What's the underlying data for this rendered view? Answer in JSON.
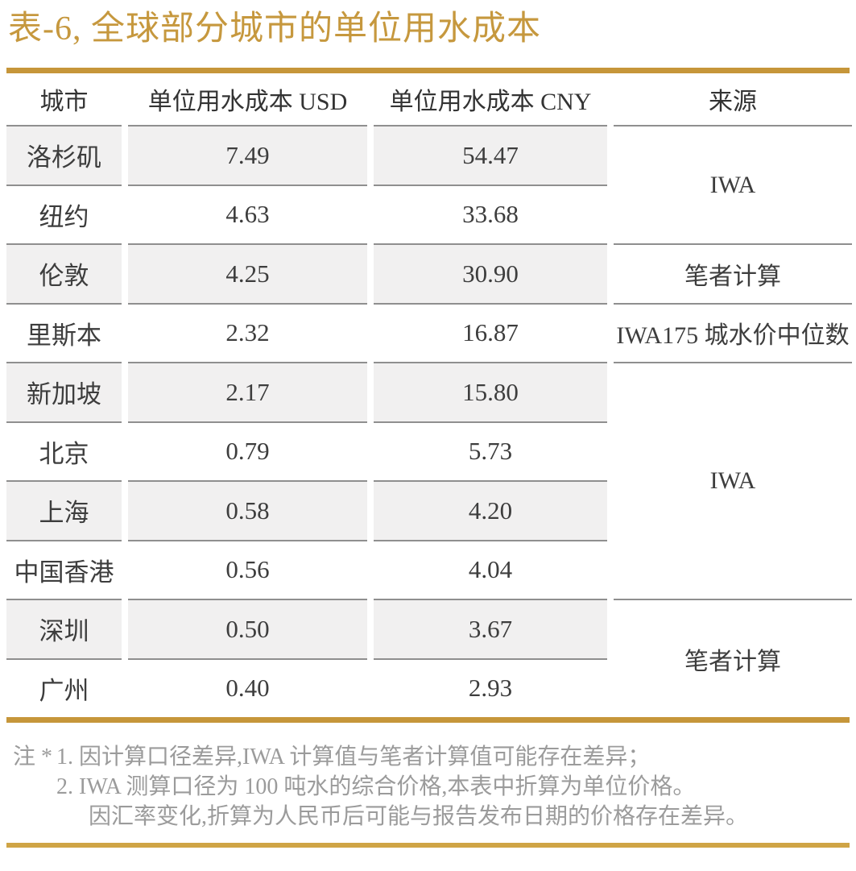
{
  "title": "表-6, 全球部分城市的单位用水成本",
  "table": {
    "columns": [
      "城市",
      "单位用水成本 USD",
      "单位用水成本 CNY",
      "来源"
    ],
    "rows": [
      {
        "city": "洛杉矶",
        "usd": "7.49",
        "cny": "54.47"
      },
      {
        "city": "纽约",
        "usd": "4.63",
        "cny": "33.68"
      },
      {
        "city": "伦敦",
        "usd": "4.25",
        "cny": "30.90"
      },
      {
        "city": "里斯本",
        "usd": "2.32",
        "cny": "16.87"
      },
      {
        "city": "新加坡",
        "usd": "2.17",
        "cny": "15.80"
      },
      {
        "city": "北京",
        "usd": "0.79",
        "cny": "5.73"
      },
      {
        "city": "上海",
        "usd": "0.58",
        "cny": "4.20"
      },
      {
        "city": "中国香港",
        "usd": "0.56",
        "cny": "4.04"
      },
      {
        "city": "深圳",
        "usd": "0.50",
        "cny": "3.67"
      },
      {
        "city": "广州",
        "usd": "0.40",
        "cny": "2.93"
      }
    ],
    "sources": [
      {
        "label": "IWA",
        "row_start": 1,
        "row_span": 2
      },
      {
        "label": "笔者计算",
        "row_start": 3,
        "row_span": 1
      },
      {
        "label": "IWA175 城水价中位数",
        "row_start": 4,
        "row_span": 1
      },
      {
        "label": "IWA",
        "row_start": 5,
        "row_span": 4
      },
      {
        "label": "笔者计算",
        "row_start": 9,
        "row_span": 2
      }
    ]
  },
  "notes": {
    "marker": "注 *",
    "lines": [
      "1. 因计算口径差异,IWA 计算值与笔者计算值可能存在差异；",
      "2. IWA 测算口径为 100 吨水的综合价格,本表中折算为单位价格。",
      "因汇率变化,折算为人民币后可能与报告发布日期的价格存在差异。"
    ]
  },
  "colors": {
    "gold": "#C6963A",
    "gold_light": "#CFA446",
    "row_shade": "#F1F0F0",
    "separator": "#8F8F8F",
    "text": "#3D3D3D",
    "note_text": "#9B9B9B"
  }
}
